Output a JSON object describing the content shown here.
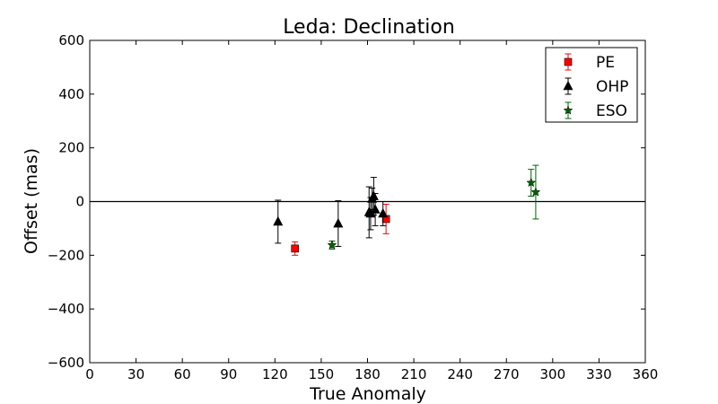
{
  "chart_data": {
    "type": "scatter",
    "title": "Leda: Declination",
    "xlabel": "True Anomaly",
    "ylabel": "Offset (mas)",
    "xlim": [
      0,
      360
    ],
    "ylim": [
      -600,
      600
    ],
    "xticks": [
      0,
      30,
      60,
      90,
      120,
      150,
      180,
      210,
      240,
      270,
      300,
      330,
      360
    ],
    "yticks": [
      -600,
      -400,
      -200,
      0,
      200,
      400,
      600
    ],
    "grid": false,
    "zero_line": true,
    "legend": "top-right",
    "series": [
      {
        "name": "PE",
        "marker": "square",
        "color": "#ff0000",
        "errcolor": "#ff0000",
        "points": [
          {
            "x": 133,
            "y": -175,
            "err": 25
          },
          {
            "x": 192,
            "y": -65,
            "err": 55
          }
        ]
      },
      {
        "name": "OHP",
        "marker": "triangle",
        "color": "#000000",
        "errcolor": "#000000",
        "points": [
          {
            "x": 122,
            "y": -75,
            "err": 80
          },
          {
            "x": 161,
            "y": -82,
            "err": 85
          },
          {
            "x": 181,
            "y": -40,
            "err": 95
          },
          {
            "x": 182,
            "y": -45,
            "err": 60
          },
          {
            "x": 183,
            "y": 10,
            "err": 40
          },
          {
            "x": 184,
            "y": 20,
            "err": 70
          },
          {
            "x": 185,
            "y": -30,
            "err": 60
          },
          {
            "x": 190,
            "y": -45,
            "err": 45
          }
        ]
      },
      {
        "name": "ESO",
        "marker": "star",
        "color": "#006400",
        "errcolor": "#006400",
        "points": [
          {
            "x": 157,
            "y": -162,
            "err": 15
          },
          {
            "x": 286,
            "y": 70,
            "err": 50
          },
          {
            "x": 289,
            "y": 35,
            "err": 100
          }
        ]
      }
    ]
  }
}
